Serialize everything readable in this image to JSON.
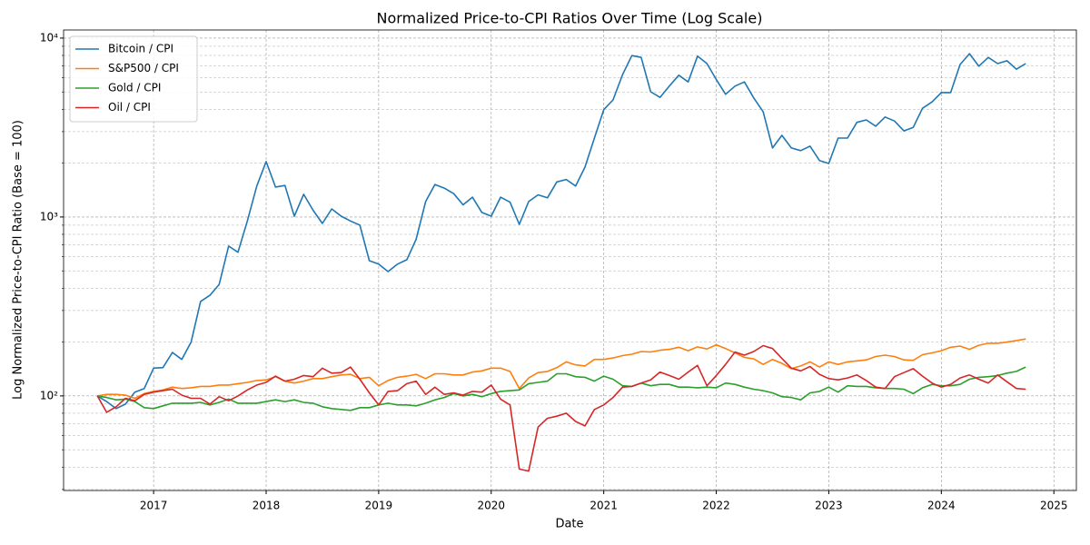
{
  "chart_data": {
    "type": "line",
    "title": "Normalized Price-to-CPI Ratios Over Time (Log Scale)",
    "xlabel": "Date",
    "ylabel": "Log Normalized Price-to-CPI Ratio (Base = 100)",
    "log_y": true,
    "grid": true,
    "legend": "upper-left",
    "x": [
      2016.5,
      2016.583,
      2016.667,
      2016.75,
      2016.833,
      2016.917,
      2017,
      2017.083,
      2017.167,
      2017.25,
      2017.333,
      2017.417,
      2017.5,
      2017.583,
      2017.667,
      2017.75,
      2017.833,
      2017.917,
      2018,
      2018.083,
      2018.167,
      2018.25,
      2018.333,
      2018.417,
      2018.5,
      2018.583,
      2018.667,
      2018.75,
      2018.833,
      2018.917,
      2019,
      2019.083,
      2019.167,
      2019.25,
      2019.333,
      2019.417,
      2019.5,
      2019.583,
      2019.667,
      2019.75,
      2019.833,
      2019.917,
      2020,
      2020.083,
      2020.167,
      2020.25,
      2020.333,
      2020.417,
      2020.5,
      2020.583,
      2020.667,
      2020.75,
      2020.833,
      2020.917,
      2021,
      2021.083,
      2021.167,
      2021.25,
      2021.333,
      2021.417,
      2021.5,
      2021.583,
      2021.667,
      2021.75,
      2021.833,
      2021.917,
      2022,
      2022.083,
      2022.167,
      2022.25,
      2022.333,
      2022.417,
      2022.5,
      2022.583,
      2022.667,
      2022.75,
      2022.833,
      2022.917,
      2023,
      2023.083,
      2023.167,
      2023.25,
      2023.333,
      2023.417,
      2023.5,
      2023.583,
      2023.667,
      2023.75,
      2023.833,
      2023.917,
      2024,
      2024.083,
      2024.167,
      2024.25,
      2024.333,
      2024.417,
      2024.5,
      2024.583,
      2024.667,
      2024.75
    ],
    "series": [
      {
        "name": "Bitcoin / CPI",
        "color": "#1f77b4",
        "values": [
          100,
          93,
          85,
          90,
          105,
          110,
          143,
          144,
          175,
          160,
          200,
          337,
          365,
          420,
          688,
          635,
          950,
          1490,
          2040,
          1470,
          1500,
          1010,
          1340,
          1090,
          920,
          1110,
          1010,
          950,
          900,
          570,
          545,
          495,
          545,
          577,
          750,
          1220,
          1520,
          1450,
          1350,
          1170,
          1290,
          1060,
          1010,
          1290,
          1210,
          910,
          1220,
          1330,
          1280,
          1570,
          1620,
          1490,
          1900,
          2760,
          3980,
          4510,
          6250,
          7980,
          7800,
          5010,
          4660,
          5390,
          6200,
          5690,
          7930,
          7200,
          5860,
          4850,
          5390,
          5690,
          4630,
          3870,
          2430,
          2860,
          2430,
          2350,
          2490,
          2070,
          1990,
          2760,
          2760,
          3380,
          3490,
          3220,
          3620,
          3440,
          3030,
          3170,
          4050,
          4400,
          4960,
          4960,
          7120,
          8180,
          6960,
          7800,
          7200,
          7470,
          6700,
          7200
        ]
      },
      {
        "name": "S&P500 / CPI",
        "color": "#ff7f0e",
        "values": [
          100,
          102,
          102,
          101,
          97,
          103,
          106,
          108,
          112,
          110,
          111,
          113,
          113,
          115,
          115,
          117,
          119,
          122,
          123,
          128,
          121,
          118,
          121,
          125,
          125,
          128,
          131,
          132,
          125,
          127,
          114,
          122,
          127,
          129,
          132,
          125,
          133,
          133,
          131,
          131,
          136,
          138,
          143,
          143,
          137,
          110,
          126,
          135,
          137,
          144,
          155,
          149,
          147,
          160,
          160,
          163,
          168,
          171,
          177,
          176,
          180,
          182,
          187,
          179,
          188,
          183,
          193,
          184,
          174,
          164,
          161,
          150,
          160,
          152,
          142,
          147,
          155,
          145,
          155,
          150,
          155,
          157,
          159,
          166,
          169,
          166,
          159,
          158,
          170,
          174,
          179,
          187,
          190,
          182,
          192,
          197,
          197,
          200,
          204,
          208
        ]
      },
      {
        "name": "Gold / CPI",
        "color": "#2ca02c",
        "values": [
          100,
          98,
          95,
          96,
          93,
          86,
          85,
          88,
          91,
          91,
          91,
          92,
          89,
          92,
          96,
          91,
          91,
          91,
          93,
          95,
          93,
          95,
          92,
          91,
          87,
          85,
          84,
          83,
          86,
          86,
          89,
          91,
          89,
          89,
          88,
          91,
          95,
          98,
          103,
          100,
          102,
          99,
          103,
          106,
          107,
          108,
          117,
          119,
          121,
          133,
          133,
          128,
          127,
          121,
          129,
          124,
          114,
          113,
          118,
          114,
          116,
          116,
          112,
          112,
          111,
          112,
          111,
          118,
          116,
          112,
          109,
          107,
          104,
          99,
          98,
          95,
          104,
          106,
          112,
          105,
          114,
          113,
          113,
          111,
          110,
          110,
          109,
          103,
          111,
          116,
          114,
          114,
          116,
          124,
          127,
          128,
          130,
          134,
          137,
          145
        ]
      },
      {
        "name": "Oil / CPI",
        "color": "#d62728",
        "values": [
          100,
          81,
          87,
          97,
          94,
          102,
          105,
          107,
          109,
          101,
          97,
          97,
          90,
          99,
          94,
          100,
          108,
          115,
          119,
          129,
          121,
          124,
          130,
          128,
          143,
          134,
          135,
          145,
          124,
          104,
          89,
          106,
          107,
          117,
          121,
          102,
          112,
          102,
          104,
          101,
          106,
          105,
          115,
          96,
          89,
          39,
          38,
          67,
          75,
          77,
          80,
          72,
          68,
          84,
          89,
          98,
          112,
          113,
          118,
          123,
          136,
          130,
          124,
          136,
          148,
          114,
          130,
          150,
          176,
          169,
          177,
          191,
          184,
          162,
          143,
          138,
          146,
          132,
          125,
          123,
          126,
          131,
          122,
          112,
          110,
          128,
          135,
          142,
          129,
          118,
          112,
          116,
          126,
          131,
          124,
          118,
          131,
          120,
          110,
          109
        ]
      }
    ],
    "xlim": [
      2016.2,
      2025.2
    ],
    "xticks": [
      2017,
      2018,
      2019,
      2020,
      2021,
      2022,
      2023,
      2024,
      2025
    ],
    "ylim": [
      29.6,
      11100
    ],
    "yticks": [
      {
        "value": 100,
        "label": "10²"
      },
      {
        "value": 1000,
        "label": "10³"
      },
      {
        "value": 10000,
        "label": "10⁴"
      }
    ],
    "yminorticks": [
      30,
      40,
      50,
      60,
      70,
      80,
      90,
      200,
      300,
      400,
      500,
      600,
      700,
      800,
      900,
      2000,
      3000,
      4000,
      5000,
      6000,
      7000,
      8000,
      9000
    ]
  }
}
